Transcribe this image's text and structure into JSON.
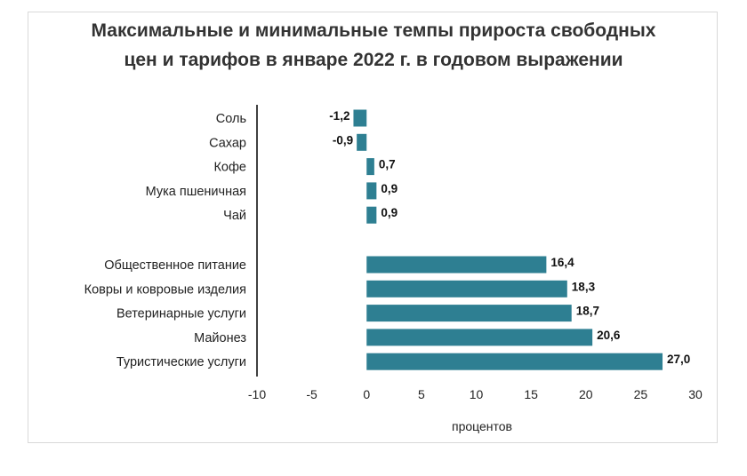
{
  "chart_data": {
    "type": "bar",
    "orientation": "horizontal",
    "title_lines": [
      "Максимальные и минимальные темпы прироста свободных",
      "цен и тарифов в январе 2022 г. в годовом выражении"
    ],
    "xlabel": "процентов",
    "xlim": [
      -10,
      30
    ],
    "xticks": [
      "-10",
      "-5",
      "0",
      "5",
      "10",
      "15",
      "20",
      "25",
      "30"
    ],
    "bar_color": "#2e7f92",
    "grid": false,
    "groups": [
      {
        "categories": [
          "Соль",
          "Сахар",
          "Кофе",
          "Мука пшеничная",
          "Чай"
        ],
        "values": [
          -1.2,
          -0.9,
          0.7,
          0.9,
          0.9
        ],
        "labels": [
          "-1,2",
          "-0,9",
          "0,7",
          "0,9",
          "0,9"
        ]
      },
      {
        "categories": [
          "Общественное питание",
          "Ковры и ковровые изделия",
          "Ветеринарные услуги",
          "Майонез",
          "Туристические услуги"
        ],
        "values": [
          16.4,
          18.3,
          18.7,
          20.6,
          27.0
        ],
        "labels": [
          "16,4",
          "18,3",
          "18,7",
          "20,6",
          "27,0"
        ]
      }
    ]
  }
}
